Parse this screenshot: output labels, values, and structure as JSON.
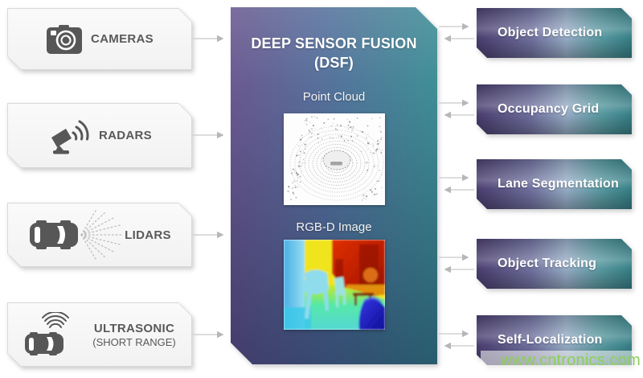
{
  "fusion": {
    "title_line1": "DEEP SENSOR FUSION",
    "title_line2": "(DSF)",
    "images": [
      {
        "name": "point-cloud-image",
        "label": "Point Cloud"
      },
      {
        "name": "rgbd-image",
        "label": "RGB-D Image"
      }
    ]
  },
  "sensors": [
    {
      "id": "cameras",
      "icon": "camera-icon",
      "label": "CAMERAS"
    },
    {
      "id": "radars",
      "icon": "radar-icon",
      "label": "RADARS"
    },
    {
      "id": "lidars",
      "icon": "lidar-car-icon",
      "label": "LIDARS"
    },
    {
      "id": "ultrasonic",
      "icon": "ultrasonic-car-icon",
      "label": "ULTRASONIC",
      "sublabel": "(SHORT RANGE)"
    }
  ],
  "outputs": [
    {
      "label": "Object Detection"
    },
    {
      "label": "Occupancy Grid"
    },
    {
      "label": "Lane Segmentation"
    },
    {
      "label": "Object Tracking"
    },
    {
      "label": "Self-Localization"
    }
  ],
  "watermark": {
    "text": "www.cntronics.com",
    "color": "#8ccf5a"
  },
  "colors": {
    "fusion_purple": "#6a5990",
    "fusion_teal": "#3f8e96",
    "output_purple": "#493d6e",
    "output_teal": "#357e85",
    "sensor_bg": "#f7f7f7",
    "sensor_border": "#d8d8d8",
    "icon_gray": "#575757",
    "label_gray": "#595959",
    "arrow_gray": "#c9c9c9"
  }
}
